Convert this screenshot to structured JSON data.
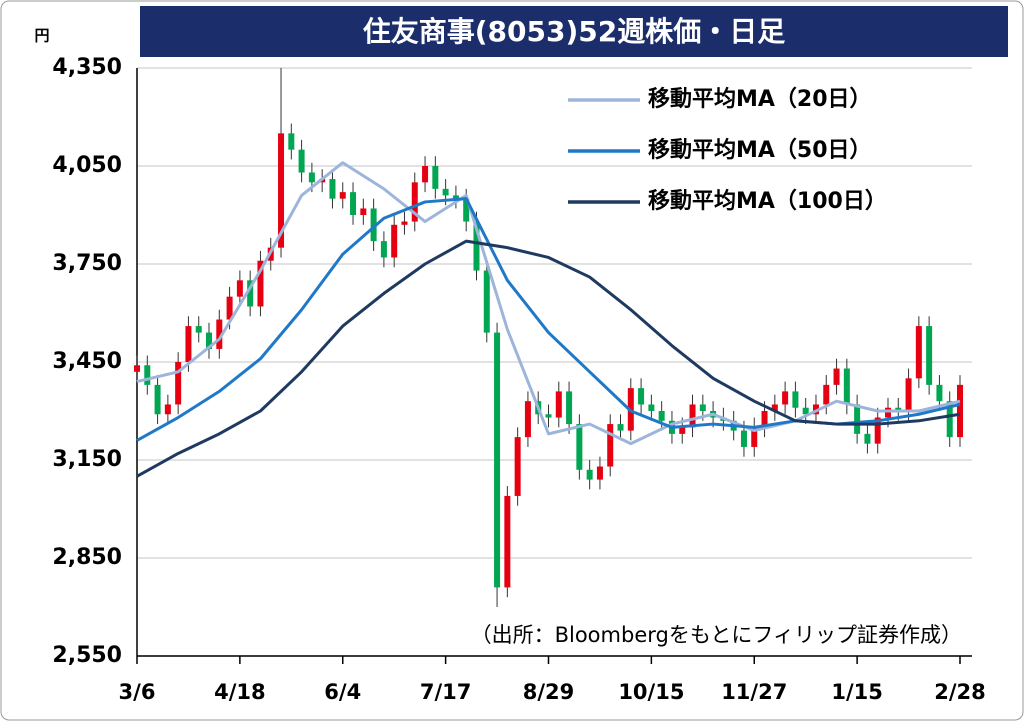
{
  "chart_data": {
    "type": "candlestick",
    "title": "住友商事(8053)52週株価・日足",
    "y_unit": "円",
    "note": "（出所：Bloombergをもとにフィリップ証券作成）",
    "xlim": [
      0,
      240
    ],
    "xticks": [
      {
        "value": 0,
        "label": "3/6"
      },
      {
        "value": 30,
        "label": "4/18"
      },
      {
        "value": 60,
        "label": "6/4"
      },
      {
        "value": 90,
        "label": "7/17"
      },
      {
        "value": 120,
        "label": "8/29"
      },
      {
        "value": 150,
        "label": "10/15"
      },
      {
        "value": 180,
        "label": "11/27"
      },
      {
        "value": 210,
        "label": "1/15"
      },
      {
        "value": 240,
        "label": "2/28"
      }
    ],
    "ylim": [
      2550,
      4350
    ],
    "yticks": [
      {
        "value": 2550,
        "label": "2,550"
      },
      {
        "value": 2850,
        "label": "2,850"
      },
      {
        "value": 3150,
        "label": "3,150"
      },
      {
        "value": 3450,
        "label": "3,450"
      },
      {
        "value": 3750,
        "label": "3,750"
      },
      {
        "value": 4050,
        "label": "4,050"
      },
      {
        "value": 4350,
        "label": "4,350"
      }
    ],
    "grid": true,
    "legend": "upper right",
    "up_color": "#e60012",
    "down_color": "#00a651",
    "candles": {
      "x": [
        0,
        3,
        6,
        9,
        12,
        15,
        18,
        21,
        24,
        27,
        30,
        33,
        36,
        39,
        42,
        45,
        48,
        51,
        54,
        57,
        60,
        63,
        66,
        69,
        72,
        75,
        78,
        81,
        84,
        87,
        90,
        93,
        96,
        99,
        102,
        105,
        108,
        111,
        114,
        117,
        120,
        123,
        126,
        129,
        132,
        135,
        138,
        141,
        144,
        147,
        150,
        153,
        156,
        159,
        162,
        165,
        168,
        171,
        174,
        177,
        180,
        183,
        186,
        189,
        192,
        195,
        198,
        201,
        204,
        207,
        210,
        213,
        216,
        219,
        222,
        225,
        228,
        231,
        234,
        237,
        240
      ],
      "open": [
        3420,
        3440,
        3380,
        3290,
        3320,
        3450,
        3560,
        3540,
        3490,
        3580,
        3650,
        3700,
        3620,
        3760,
        3800,
        4150,
        4100,
        4030,
        4000,
        4010,
        3950,
        3970,
        3900,
        3920,
        3820,
        3770,
        3870,
        3880,
        4000,
        4050,
        3980,
        3960,
        3950,
        3880,
        3730,
        3540,
        2760,
        3040,
        3220,
        3330,
        3290,
        3280,
        3360,
        3260,
        3120,
        3090,
        3130,
        3260,
        3240,
        3370,
        3320,
        3300,
        3270,
        3230,
        3250,
        3320,
        3300,
        3280,
        3270,
        3240,
        3190,
        3250,
        3300,
        3320,
        3360,
        3310,
        3290,
        3320,
        3380,
        3430,
        3320,
        3230,
        3200,
        3280,
        3310,
        3300,
        3400,
        3560,
        3380,
        3330,
        3220
      ],
      "high": [
        3470,
        3470,
        3410,
        3350,
        3480,
        3590,
        3590,
        3570,
        3610,
        3680,
        3730,
        3730,
        3790,
        3830,
        4350,
        4180,
        4130,
        4060,
        4040,
        4040,
        4000,
        4000,
        3950,
        3950,
        3850,
        3900,
        3910,
        4030,
        4080,
        4080,
        4010,
        3990,
        3980,
        3910,
        3760,
        3570,
        3070,
        3250,
        3360,
        3360,
        3320,
        3390,
        3390,
        3290,
        3150,
        3160,
        3290,
        3290,
        3400,
        3400,
        3350,
        3330,
        3300,
        3280,
        3350,
        3350,
        3330,
        3310,
        3300,
        3270,
        3280,
        3330,
        3350,
        3390,
        3390,
        3340,
        3350,
        3410,
        3460,
        3460,
        3350,
        3260,
        3310,
        3340,
        3340,
        3430,
        3590,
        3590,
        3410,
        3360,
        3410
      ],
      "low": [
        3390,
        3350,
        3260,
        3260,
        3290,
        3420,
        3510,
        3460,
        3460,
        3550,
        3620,
        3590,
        3590,
        3730,
        3770,
        4070,
        4000,
        3970,
        3970,
        3920,
        3920,
        3870,
        3870,
        3790,
        3740,
        3740,
        3840,
        3850,
        3970,
        3950,
        3930,
        3920,
        3850,
        3700,
        3510,
        2700,
        2730,
        3010,
        3190,
        3260,
        3250,
        3250,
        3230,
        3090,
        3060,
        3060,
        3100,
        3210,
        3210,
        3290,
        3270,
        3240,
        3200,
        3200,
        3220,
        3270,
        3250,
        3240,
        3210,
        3160,
        3160,
        3220,
        3270,
        3290,
        3280,
        3260,
        3260,
        3290,
        3350,
        3290,
        3200,
        3170,
        3170,
        3250,
        3270,
        3270,
        3370,
        3350,
        3300,
        3190,
        3190
      ],
      "close": [
        3440,
        3380,
        3290,
        3320,
        3450,
        3560,
        3540,
        3490,
        3580,
        3650,
        3700,
        3620,
        3760,
        3800,
        4150,
        4100,
        4030,
        4000,
        4010,
        3950,
        3970,
        3900,
        3920,
        3820,
        3770,
        3870,
        3880,
        4000,
        4050,
        3980,
        3960,
        3950,
        3880,
        3730,
        3540,
        2760,
        3040,
        3220,
        3330,
        3290,
        3280,
        3360,
        3260,
        3120,
        3090,
        3130,
        3260,
        3240,
        3370,
        3320,
        3300,
        3270,
        3230,
        3250,
        3320,
        3300,
        3280,
        3270,
        3240,
        3190,
        3250,
        3300,
        3320,
        3360,
        3310,
        3290,
        3320,
        3380,
        3430,
        3320,
        3230,
        3200,
        3280,
        3310,
        3300,
        3400,
        3560,
        3380,
        3330,
        3220,
        3380
      ]
    },
    "lines": [
      {
        "name": "移動平均MA（20日）",
        "color": "#9db5da",
        "x": [
          0,
          12,
          24,
          36,
          48,
          60,
          72,
          84,
          96,
          108,
          120,
          132,
          144,
          156,
          168,
          180,
          192,
          204,
          216,
          228,
          240
        ],
        "values": [
          3390,
          3420,
          3520,
          3730,
          3960,
          4060,
          3980,
          3880,
          3960,
          3550,
          3230,
          3260,
          3200,
          3260,
          3290,
          3240,
          3270,
          3330,
          3300,
          3300,
          3330
        ]
      },
      {
        "name": "移動平均MA（50日）",
        "color": "#1f78c8",
        "x": [
          0,
          12,
          24,
          36,
          48,
          60,
          72,
          84,
          96,
          108,
          120,
          132,
          144,
          156,
          168,
          180,
          192,
          204,
          216,
          228,
          240
        ],
        "values": [
          3210,
          3280,
          3360,
          3460,
          3610,
          3780,
          3890,
          3940,
          3950,
          3700,
          3540,
          3420,
          3300,
          3250,
          3260,
          3250,
          3270,
          3260,
          3270,
          3290,
          3320
        ]
      },
      {
        "name": "移動平均MA（100日）",
        "color": "#1f3a60",
        "x": [
          0,
          12,
          24,
          36,
          48,
          60,
          72,
          84,
          96,
          108,
          120,
          132,
          144,
          156,
          168,
          180,
          192,
          204,
          216,
          228,
          240
        ],
        "values": [
          3100,
          3170,
          3230,
          3300,
          3420,
          3560,
          3660,
          3750,
          3820,
          3800,
          3770,
          3710,
          3610,
          3500,
          3400,
          3330,
          3270,
          3260,
          3260,
          3270,
          3290
        ]
      }
    ]
  }
}
